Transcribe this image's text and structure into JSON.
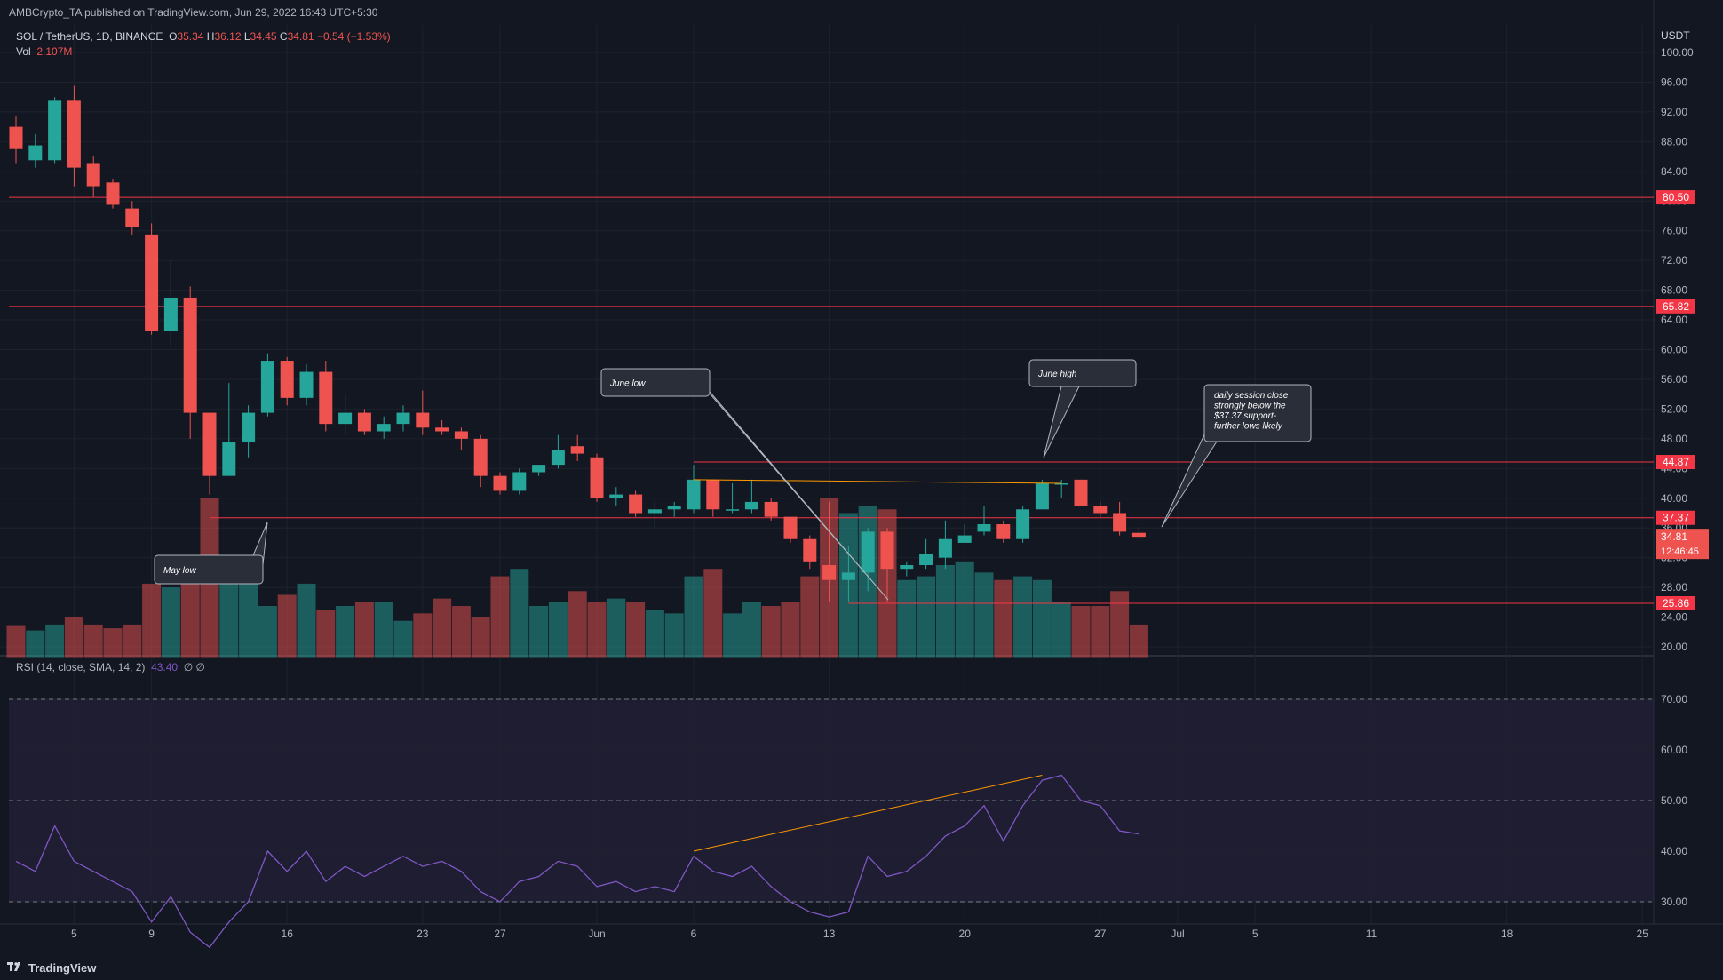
{
  "header": {
    "publisher": "AMBCrypto_TA published on TradingView.com, Jun 29, 2022 16:43 UTC+5:30",
    "symbol": "SOL / TetherUS, 1D, BINANCE",
    "o_label": "O",
    "o_value": "35.34",
    "h_label": "H",
    "h_value": "36.12",
    "l_label": "L",
    "l_value": "34.45",
    "c_label": "C",
    "c_value": "34.81",
    "change": "−0.54 (−1.53%)",
    "vol_label": "Vol",
    "vol_value": "2.107M",
    "rsi_label": "RSI (14, close, SMA, 14, 2)",
    "rsi_value": "43.40",
    "rsi_na": "∅ ∅"
  },
  "footer": {
    "brand": "TradingView"
  },
  "colors": {
    "up": "#26a69a",
    "down": "#ef5350",
    "bg": "#131722",
    "rsi": "#7e57c2",
    "trend": "#ff9800"
  },
  "chart_data": {
    "type": "candlestick",
    "title": "SOL / TetherUS, 1D, BINANCE",
    "currency": "USDT",
    "price_axis": {
      "min": 18.5,
      "max": 100.0,
      "ticks": [
        "100.00",
        "96.00",
        "92.00",
        "88.00",
        "84.00",
        "80.00",
        "76.00",
        "72.00",
        "68.00",
        "64.00",
        "60.00",
        "56.00",
        "52.00",
        "48.00",
        "44.00",
        "40.00",
        "36.00",
        "32.00",
        "28.00",
        "24.00",
        "20.00"
      ]
    },
    "rsi_axis": {
      "ticks": [
        "70.00",
        "60.00",
        "50.00",
        "40.00",
        "30.00"
      ]
    },
    "x_ticks": [
      {
        "label": "5",
        "idx": 3
      },
      {
        "label": "9",
        "idx": 7
      },
      {
        "label": "16",
        "idx": 14
      },
      {
        "label": "23",
        "idx": 21
      },
      {
        "label": "27",
        "idx": 25
      },
      {
        "label": "Jun",
        "idx": 30
      },
      {
        "label": "6",
        "idx": 35
      },
      {
        "label": "13",
        "idx": 42
      },
      {
        "label": "20",
        "idx": 49
      },
      {
        "label": "27",
        "idx": 56
      },
      {
        "label": "Jul",
        "idx": 60
      },
      {
        "label": "5",
        "idx": 64
      },
      {
        "label": "11",
        "idx": 70
      },
      {
        "label": "18",
        "idx": 77
      },
      {
        "label": "25",
        "idx": 84
      }
    ],
    "candles": [
      {
        "o": 90,
        "h": 91.5,
        "l": 85,
        "c": 87
      },
      {
        "o": 85.5,
        "h": 89,
        "l": 84.5,
        "c": 87.5
      },
      {
        "o": 85.5,
        "h": 94,
        "l": 85,
        "c": 93.5
      },
      {
        "o": 93.5,
        "h": 95.5,
        "l": 82,
        "c": 84.5
      },
      {
        "o": 85,
        "h": 86,
        "l": 80.5,
        "c": 82
      },
      {
        "o": 82.5,
        "h": 83,
        "l": 79,
        "c": 79.5
      },
      {
        "o": 79,
        "h": 80,
        "l": 75.5,
        "c": 76.5
      },
      {
        "o": 75.5,
        "h": 77,
        "l": 62,
        "c": 62.5
      },
      {
        "o": 62.5,
        "h": 72,
        "l": 60.5,
        "c": 67
      },
      {
        "o": 67,
        "h": 68.5,
        "l": 48,
        "c": 51.5
      },
      {
        "o": 51.5,
        "h": 51.5,
        "l": 40.5,
        "c": 43
      },
      {
        "o": 43,
        "h": 55.5,
        "l": 43,
        "c": 47.5
      },
      {
        "o": 47.5,
        "h": 52.5,
        "l": 45.5,
        "c": 51.5
      },
      {
        "o": 51.5,
        "h": 59.5,
        "l": 51,
        "c": 58.5
      },
      {
        "o": 58.5,
        "h": 59,
        "l": 52.5,
        "c": 53.5
      },
      {
        "o": 53.5,
        "h": 58,
        "l": 52.5,
        "c": 57
      },
      {
        "o": 57,
        "h": 58.5,
        "l": 49,
        "c": 50
      },
      {
        "o": 50,
        "h": 54,
        "l": 48.5,
        "c": 51.5
      },
      {
        "o": 51.5,
        "h": 52,
        "l": 48.5,
        "c": 49
      },
      {
        "o": 49,
        "h": 51,
        "l": 48,
        "c": 50
      },
      {
        "o": 50,
        "h": 52.5,
        "l": 49,
        "c": 51.5
      },
      {
        "o": 51.5,
        "h": 54.5,
        "l": 48.5,
        "c": 49.5
      },
      {
        "o": 49.5,
        "h": 50.5,
        "l": 48.5,
        "c": 49
      },
      {
        "o": 49,
        "h": 49.5,
        "l": 46.5,
        "c": 48
      },
      {
        "o": 48,
        "h": 48.5,
        "l": 41.5,
        "c": 43
      },
      {
        "o": 43,
        "h": 43.5,
        "l": 40.5,
        "c": 41
      },
      {
        "o": 41,
        "h": 44,
        "l": 40.5,
        "c": 43.5
      },
      {
        "o": 43.5,
        "h": 44.5,
        "l": 43,
        "c": 44.5
      },
      {
        "o": 44.5,
        "h": 48.5,
        "l": 44,
        "c": 46.5
      },
      {
        "o": 47,
        "h": 48.5,
        "l": 45,
        "c": 46
      },
      {
        "o": 45.5,
        "h": 46,
        "l": 39.5,
        "c": 40
      },
      {
        "o": 40,
        "h": 41.5,
        "l": 39,
        "c": 40.5
      },
      {
        "o": 40.5,
        "h": 41,
        "l": 37.5,
        "c": 38
      },
      {
        "o": 38,
        "h": 39.5,
        "l": 36,
        "c": 38.5
      },
      {
        "o": 38.5,
        "h": 39.5,
        "l": 37.5,
        "c": 39
      },
      {
        "o": 38.5,
        "h": 44.5,
        "l": 38,
        "c": 42.5
      },
      {
        "o": 42.5,
        "h": 42.5,
        "l": 37.5,
        "c": 38.5
      },
      {
        "o": 38.5,
        "h": 42,
        "l": 38,
        "c": 38.5
      },
      {
        "o": 38.5,
        "h": 42.5,
        "l": 38,
        "c": 39.5
      },
      {
        "o": 39.5,
        "h": 40,
        "l": 37,
        "c": 37.5
      },
      {
        "o": 37.5,
        "h": 37.5,
        "l": 34,
        "c": 34.5
      },
      {
        "o": 34.5,
        "h": 35,
        "l": 30.5,
        "c": 31.5
      },
      {
        "o": 31,
        "h": 39.5,
        "l": 26,
        "c": 29
      },
      {
        "o": 29,
        "h": 33.5,
        "l": 26,
        "c": 30
      },
      {
        "o": 30,
        "h": 36,
        "l": 27.5,
        "c": 35.5
      },
      {
        "o": 35.5,
        "h": 36,
        "l": 26,
        "c": 30.5
      },
      {
        "o": 30.5,
        "h": 31.5,
        "l": 29.5,
        "c": 31
      },
      {
        "o": 31,
        "h": 34.5,
        "l": 30.5,
        "c": 32.5
      },
      {
        "o": 32,
        "h": 37,
        "l": 30.5,
        "c": 34.5
      },
      {
        "o": 34,
        "h": 36.5,
        "l": 34,
        "c": 35
      },
      {
        "o": 35.5,
        "h": 39,
        "l": 35,
        "c": 36.5
      },
      {
        "o": 36.5,
        "h": 37,
        "l": 34,
        "c": 34.5
      },
      {
        "o": 34.5,
        "h": 39,
        "l": 34,
        "c": 38.5
      },
      {
        "o": 38.5,
        "h": 42.5,
        "l": 38.5,
        "c": 42
      },
      {
        "o": 42,
        "h": 42.5,
        "l": 40,
        "c": 42
      },
      {
        "o": 42.5,
        "h": 42.5,
        "l": 39,
        "c": 39
      },
      {
        "o": 39,
        "h": 39.5,
        "l": 37.5,
        "c": 38
      },
      {
        "o": 38,
        "h": 39.5,
        "l": 35,
        "c": 35.5
      },
      {
        "o": 35.34,
        "h": 36.12,
        "l": 34.45,
        "c": 34.81
      }
    ],
    "volume_scale": {
      "min": 18.5,
      "note": "volume bars plotted in price-axis units"
    },
    "volume": [
      22.8,
      22.2,
      23.0,
      24.0,
      23.0,
      22.5,
      23.0,
      28.5,
      28.0,
      31.0,
      40.0,
      31.5,
      29.0,
      25.5,
      27.0,
      28.5,
      25.0,
      25.5,
      26.0,
      26.0,
      23.5,
      24.5,
      26.5,
      25.5,
      24.0,
      29.5,
      30.5,
      25.5,
      26.0,
      27.5,
      26.0,
      26.5,
      26.0,
      25.0,
      24.5,
      29.5,
      30.5,
      24.5,
      26.0,
      25.5,
      26.0,
      29.5,
      40.0,
      38.0,
      39.0,
      38.5,
      29.0,
      29.5,
      31.0,
      31.5,
      30.0,
      29.0,
      29.5,
      29.0,
      26.0,
      25.5,
      25.5,
      27.5,
      23.0
    ],
    "rsi_values": [
      38,
      36,
      45,
      38,
      36,
      34,
      32,
      26,
      31,
      24,
      21,
      26,
      30,
      40,
      36,
      40,
      34,
      37,
      35,
      37,
      39,
      37,
      38,
      36,
      32,
      30,
      34,
      35,
      38,
      37,
      33,
      34,
      32,
      33,
      32,
      39,
      36,
      35,
      37,
      33,
      30,
      28,
      27,
      28,
      39,
      35,
      36,
      39,
      43,
      45,
      49,
      42,
      49,
      54,
      55,
      50,
      49,
      44,
      43.4
    ],
    "levels": [
      {
        "price": 80.5,
        "label": "80.50"
      },
      {
        "price": 65.82,
        "label": "65.82"
      },
      {
        "price": 44.87,
        "label": "44.87",
        "from_idx": 35
      },
      {
        "price": 37.37,
        "label": "37.37",
        "from_idx": 10
      },
      {
        "price": 25.86,
        "label": "25.86",
        "from_idx": 43
      }
    ],
    "current_price": {
      "label": "34.81",
      "countdown": "12:46:45"
    },
    "trendlines": [
      {
        "pane": "price",
        "from_idx": 35,
        "from_val": 42.5,
        "to_idx": 54,
        "to_val": 42.0
      },
      {
        "pane": "rsi",
        "from_idx": 35,
        "from_val": 40,
        "to_idx": 53,
        "to_val": 55
      }
    ],
    "annotations": [
      {
        "lines": [
          "June low"
        ]
      },
      {
        "lines": [
          "June high"
        ]
      },
      {
        "lines": [
          "May low"
        ]
      },
      {
        "lines": [
          "daily session close",
          "strongly below the",
          "$37.37 support-",
          "further lows likely"
        ]
      }
    ]
  }
}
